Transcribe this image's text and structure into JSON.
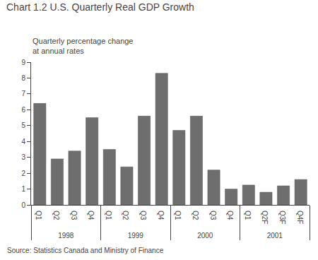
{
  "chart_data": {
    "type": "bar",
    "title": "Chart 1.2 U.S. Quarterly Real GDP Growth",
    "subtitle": [
      "Quarterly percentage change",
      "at annual rates"
    ],
    "annotations": [
      "Source: Statistics Canada and Ministry of Finance"
    ],
    "categories": [
      [
        "1998",
        "Q1"
      ],
      [
        "1998",
        "Q2"
      ],
      [
        "1998",
        "Q3"
      ],
      [
        "1998",
        "Q4"
      ],
      [
        "1999",
        "Q1"
      ],
      [
        "1999",
        "Q2"
      ],
      [
        "1999",
        "Q3"
      ],
      [
        "1999",
        "Q4"
      ],
      [
        "2000",
        "Q1"
      ],
      [
        "2000",
        "Q2"
      ],
      [
        "2000",
        "Q3"
      ],
      [
        "2000",
        "Q4"
      ],
      [
        "2001",
        "Q1"
      ],
      [
        "2001",
        "Q2F"
      ],
      [
        "2001",
        "Q3F"
      ],
      [
        "2001",
        "Q4F"
      ]
    ],
    "values": [
      6.4,
      2.9,
      3.4,
      5.5,
      3.5,
      2.4,
      5.6,
      8.3,
      4.7,
      5.6,
      2.2,
      1.0,
      1.25,
      0.8,
      1.2,
      1.6
    ],
    "color": "#6e6e6e",
    "ylim": [
      0,
      9
    ],
    "yticks": [
      0,
      1,
      2,
      3,
      4,
      5,
      6,
      7,
      8,
      9
    ],
    "grid": false
  }
}
